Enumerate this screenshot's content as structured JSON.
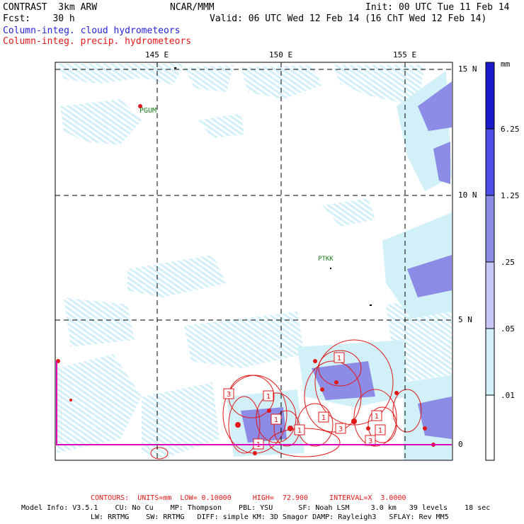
{
  "header": {
    "model": "CONTRAST  3km ARW",
    "org": "NCAR/MMM",
    "init": "Init: 00 UTC Tue 11 Feb 14",
    "fcst": "Fcst:    30 h",
    "valid": "Valid: 06 UTC Wed 12 Feb 14 (16 ChT Wed 12 Feb 14)",
    "field1": "Column-integ. cloud hydrometeors",
    "field2": "Column-integ. precip. hydrometeors"
  },
  "axes": {
    "lon_labels": [
      "145 E",
      "150 E",
      "155 E"
    ],
    "lat_labels": [
      "15 N",
      "10 N",
      "5 N",
      "0"
    ]
  },
  "stations": [
    {
      "name": "PGUM"
    },
    {
      "name": "PTKK"
    }
  ],
  "legend": {
    "unit": "mm",
    "labels": [
      "6.25",
      "1.25",
      ".25",
      ".05",
      ".01"
    ],
    "colors": [
      "#1a1acc",
      "#4c4ce6",
      "#8c8ce6",
      "#c8c8f8",
      "#d2f0f8",
      "#ffffff"
    ]
  },
  "footer": {
    "contours": "CONTOURS:  UNITS=mm  LOW= 0.10000     HIGH=  72.900     INTERVAL=X  3.0000",
    "info1": "Model Info: V3.5.1    CU: No Cu    MP: Thompson    PBL: YSU      SF: Noah LSM     3.0 km   39 levels    18 sec",
    "info2": "LW: RRTMG    SW: RRTMG   DIFF: simple KM: 3D Smagor DAMP: Rayleigh3   SFLAY: Rev MM5"
  },
  "contour_labels": [
    "3",
    "1",
    "1",
    "1",
    "3",
    "1",
    "1",
    "3",
    "1",
    "1",
    "1"
  ],
  "colors": {
    "cloud": "#2424d8",
    "precip": "#e01818",
    "magenta": "#e000c0"
  }
}
